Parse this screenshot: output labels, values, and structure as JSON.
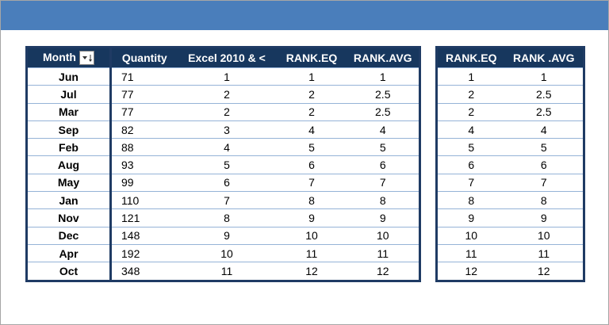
{
  "table1": {
    "headers": [
      "Month",
      "Quantity",
      "Excel 2010 & <",
      "RANK.EQ",
      "RANK.AVG"
    ],
    "rows": [
      [
        "Jun",
        "71",
        "1",
        "1",
        "1"
      ],
      [
        "Jul",
        "77",
        "2",
        "2",
        "2.5"
      ],
      [
        "Mar",
        "77",
        "2",
        "2",
        "2.5"
      ],
      [
        "Sep",
        "82",
        "3",
        "4",
        "4"
      ],
      [
        "Feb",
        "88",
        "4",
        "5",
        "5"
      ],
      [
        "Aug",
        "93",
        "5",
        "6",
        "6"
      ],
      [
        "May",
        "99",
        "6",
        "7",
        "7"
      ],
      [
        "Jan",
        "110",
        "7",
        "8",
        "8"
      ],
      [
        "Nov",
        "121",
        "8",
        "9",
        "9"
      ],
      [
        "Dec",
        "148",
        "9",
        "10",
        "10"
      ],
      [
        "Apr",
        "192",
        "10",
        "11",
        "11"
      ],
      [
        "Oct",
        "348",
        "11",
        "12",
        "12"
      ]
    ]
  },
  "table2": {
    "headers": [
      "RANK.EQ",
      "RANK .AVG"
    ],
    "rows": [
      [
        "1",
        "1"
      ],
      [
        "2",
        "2.5"
      ],
      [
        "2",
        "2.5"
      ],
      [
        "4",
        "4"
      ],
      [
        "5",
        "5"
      ],
      [
        "6",
        "6"
      ],
      [
        "7",
        "7"
      ],
      [
        "8",
        "8"
      ],
      [
        "9",
        "9"
      ],
      [
        "10",
        "10"
      ],
      [
        "11",
        "11"
      ],
      [
        "12",
        "12"
      ]
    ]
  }
}
